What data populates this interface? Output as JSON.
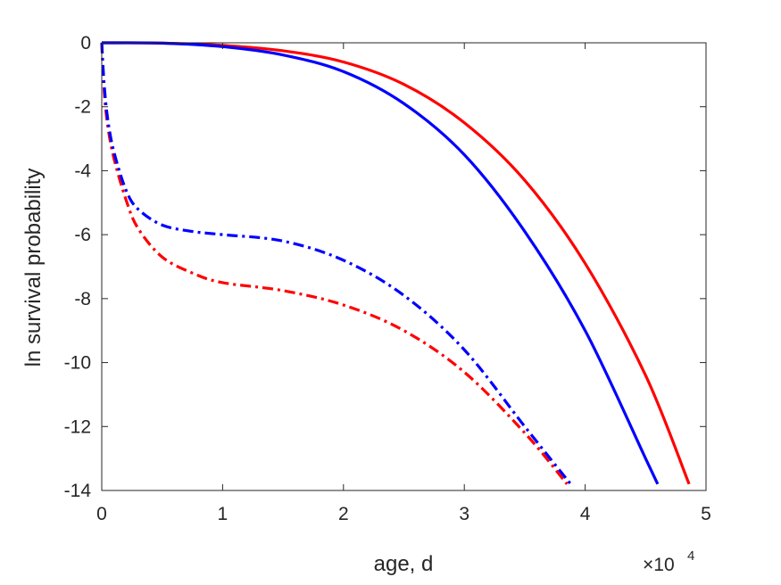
{
  "chart_data": {
    "type": "line",
    "title": "",
    "xlabel": "age, d",
    "ylabel": "ln survival probability",
    "x_scale_note": "×10",
    "x_scale_exponent": "4",
    "xlim": [
      0,
      5
    ],
    "ylim": [
      -14,
      0
    ],
    "xticks": [
      "0",
      "1",
      "2",
      "3",
      "4",
      "5"
    ],
    "yticks": [
      "0",
      "-2",
      "-4",
      "-6",
      "-8",
      "-10",
      "-12",
      "-14"
    ],
    "grid": false,
    "series": [
      {
        "color": "#ff0000",
        "style": "solid",
        "x": [
          0,
          0.5,
          1.0,
          1.5,
          2.0,
          2.5,
          3.0,
          3.5,
          4.0,
          4.5,
          4.86
        ],
        "y": [
          0,
          -0.01,
          -0.08,
          -0.25,
          -0.6,
          -1.3,
          -2.5,
          -4.3,
          -6.9,
          -10.4,
          -13.8
        ]
      },
      {
        "color": "#0000ff",
        "style": "solid",
        "x": [
          0,
          0.5,
          1.0,
          1.5,
          2.0,
          2.5,
          3.0,
          3.5,
          4.0,
          4.5,
          4.6
        ],
        "y": [
          0,
          -0.01,
          -0.12,
          -0.38,
          -0.9,
          -1.9,
          -3.5,
          -5.9,
          -9.0,
          -13.0,
          -13.8
        ]
      },
      {
        "color": "#ff0000",
        "style": "dashdot",
        "x": [
          0,
          0.02,
          0.05,
          0.1,
          0.2,
          0.3,
          0.5,
          0.75,
          1.0,
          1.5,
          2.0,
          2.5,
          3.0,
          3.5,
          3.85
        ],
        "y": [
          0,
          -1.5,
          -2.6,
          -3.6,
          -4.9,
          -5.8,
          -6.7,
          -7.2,
          -7.5,
          -7.75,
          -8.2,
          -9.0,
          -10.3,
          -12.2,
          -13.8
        ]
      },
      {
        "color": "#0000ff",
        "style": "dashdot",
        "x": [
          0,
          0.02,
          0.05,
          0.1,
          0.2,
          0.3,
          0.5,
          0.75,
          1.0,
          1.5,
          2.0,
          2.5,
          3.0,
          3.5,
          3.88
        ],
        "y": [
          0,
          -1.3,
          -2.4,
          -3.4,
          -4.6,
          -5.2,
          -5.7,
          -5.9,
          -6.0,
          -6.2,
          -6.8,
          -7.9,
          -9.6,
          -12.0,
          -13.8
        ]
      }
    ]
  }
}
